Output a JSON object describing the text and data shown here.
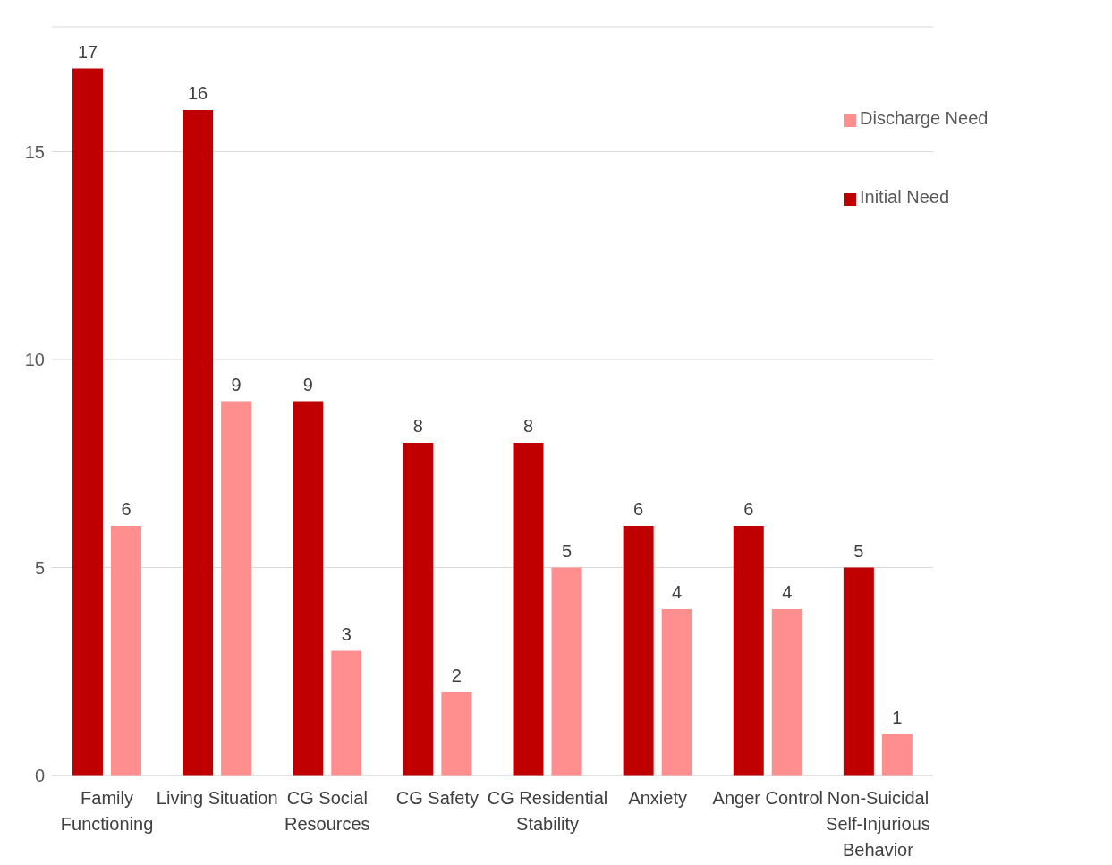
{
  "chart_data": {
    "type": "bar",
    "categories": [
      "Family Functioning",
      "Living Situation",
      "CG Social Resources",
      "CG Safety",
      "CG Residential Stability",
      "Anxiety",
      "Anger Control",
      "Non-Suicidal Self-Injurious Behavior"
    ],
    "series": [
      {
        "name": "Initial Need",
        "color": "#c00000",
        "values": [
          17,
          16,
          9,
          8,
          8,
          6,
          6,
          5
        ]
      },
      {
        "name": "Discharge Need",
        "color": "#ff8f8f",
        "values": [
          6,
          9,
          3,
          2,
          5,
          4,
          4,
          1
        ]
      }
    ],
    "ylim": [
      0,
      18
    ],
    "yticks": [
      0,
      5,
      10,
      15
    ],
    "grid": "y",
    "legend": "top right",
    "data_labels": true
  }
}
